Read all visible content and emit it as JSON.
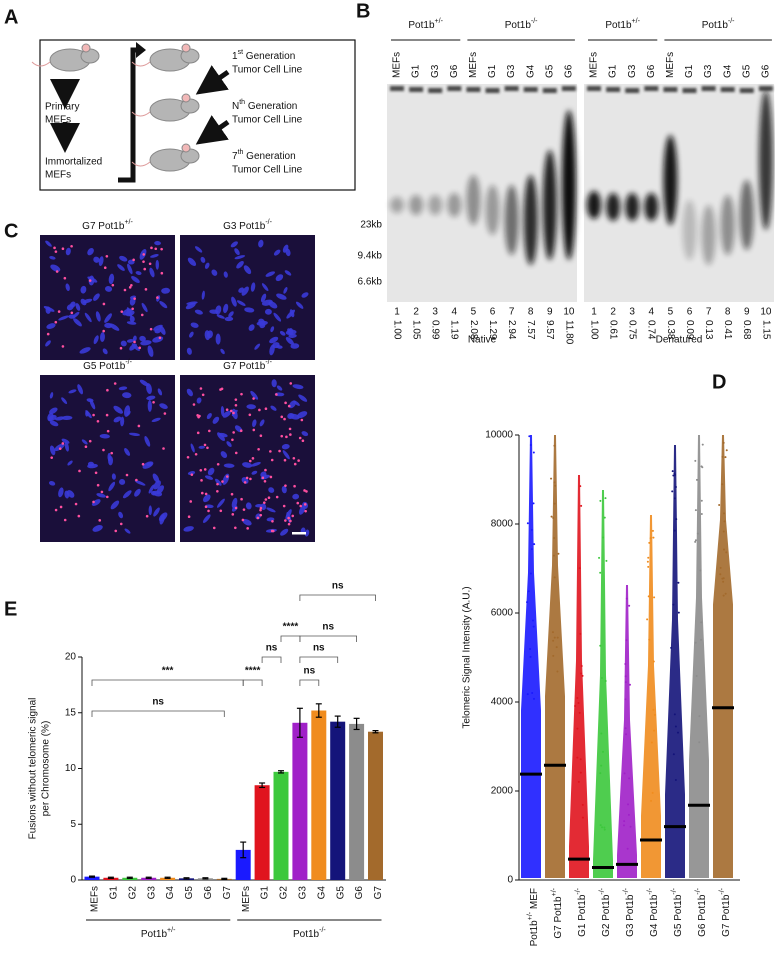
{
  "panel_labels": [
    "A",
    "B",
    "C",
    "D",
    "E"
  ],
  "panel_a": {
    "left_steps": [
      [
        "Primary",
        "MEFs"
      ],
      [
        "Immortalized",
        "MEFs"
      ]
    ],
    "right_steps": [
      [
        "1st Generation",
        "Tumor Cell Line"
      ],
      [
        "Nth Generation",
        "Tumor Cell Line"
      ],
      [
        "7th Generation",
        "Tumor Cell Line"
      ]
    ]
  },
  "panel_b": {
    "groups": [
      "Pot1b+/-",
      "Pot1b-/-"
    ],
    "lanes": [
      "MEFs",
      "G1",
      "G3",
      "G6",
      "MEFs",
      "G1",
      "G3",
      "G4",
      "G5",
      "G6"
    ],
    "markers": [
      "23kb",
      "9.4kb",
      "6.6kb"
    ],
    "gels": [
      {
        "label": "Native",
        "numbers": [
          "1",
          "2",
          "3",
          "4",
          "5",
          "6",
          "7",
          "8",
          "9",
          "10"
        ],
        "ratios": [
          "1.00",
          "1.05",
          "0.99",
          "1.19",
          "2.08",
          "1.29",
          "2.94",
          "7.57",
          "9.57",
          "11.80"
        ]
      },
      {
        "label": "Denatured",
        "numbers": [
          "1",
          "2",
          "3",
          "4",
          "5",
          "6",
          "7",
          "8",
          "9",
          "10"
        ],
        "ratios": [
          "1.00",
          "0.61",
          "0.75",
          "0.74",
          "0.38",
          "0.09",
          "0.13",
          "0.41",
          "0.68",
          "1.15"
        ]
      }
    ]
  },
  "panel_c": {
    "images": [
      "G7 Pot1b+/-",
      "G3 Pot1b-/-",
      "G5 Pot1b-/-",
      "G7 Pot1b-/-"
    ]
  },
  "chart_data": [
    {
      "type": "strip",
      "ylabel": "Telomeric Signal Intensity (A.U.)",
      "categories": [
        "Pot1b+/- MEF",
        "G7 Pot1b+/-",
        "G1 Pot1b-/-",
        "G2 Pot1b-/-",
        "G3 Pot1b-/-",
        "G4 Pot1b-/-",
        "G5 Pot1b-/-",
        "G6 Pot1b-/-",
        "G7 Pot1b-/-"
      ],
      "values": [
        2380,
        2580,
        470,
        280,
        350,
        900,
        1200,
        1680,
        3870
      ],
      "colors": [
        "#1a1aff",
        "#a36a2c",
        "#e0141e",
        "#3cc83c",
        "#a020c8",
        "#f08c1e",
        "#14147a",
        "#8c8c8c",
        "#a36a2c"
      ],
      "ylim": [
        0,
        10000
      ],
      "yticks": [
        0,
        2000,
        4000,
        6000,
        8000,
        10000
      ]
    },
    {
      "type": "bar",
      "ylabel": [
        "Fusions without telomeric signal",
        "per Chromosome (%)"
      ],
      "categories": [
        "MEFs",
        "G1",
        "G2",
        "G3",
        "G4",
        "G5",
        "G6",
        "G7",
        "MEFs",
        "G1",
        "G2",
        "G3",
        "G4",
        "G5",
        "G6",
        "G7"
      ],
      "groups": [
        "Pot1b+/-",
        "Pot1b-/-"
      ],
      "values": [
        0.3,
        0.2,
        0.2,
        0.2,
        0.2,
        0.15,
        0.15,
        0.1,
        2.7,
        8.5,
        9.7,
        14.1,
        15.2,
        14.2,
        14.0,
        13.3
      ],
      "errors": [
        0.05,
        0.05,
        0.05,
        0.05,
        0.05,
        0.05,
        0.05,
        0.05,
        0.7,
        0.2,
        0.1,
        1.3,
        0.6,
        0.5,
        0.5,
        0.1
      ],
      "colors": [
        "#1a1aff",
        "#e0141e",
        "#3cc83c",
        "#a020c8",
        "#f08c1e",
        "#14147a",
        "#8c8c8c",
        "#a36a2c",
        "#1a1aff",
        "#e0141e",
        "#3cc83c",
        "#a020c8",
        "#f08c1e",
        "#14147a",
        "#8c8c8c",
        "#a36a2c"
      ],
      "ylim": [
        0,
        20
      ],
      "yticks": [
        0,
        5,
        10,
        15,
        20
      ],
      "significance": [
        "ns",
        "****",
        "ns",
        "ns",
        "ns",
        "***",
        "****",
        "ns",
        "ns"
      ]
    }
  ]
}
